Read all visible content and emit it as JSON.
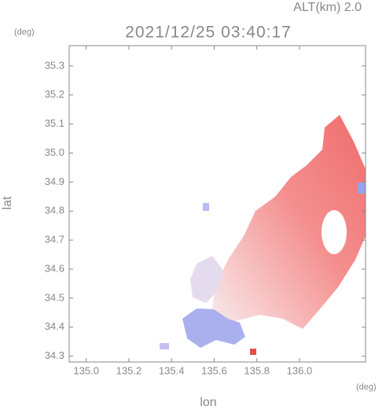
{
  "chart_data": {
    "type": "radar",
    "title": "2021/12/25 03:40:17",
    "altitude_label": "ALT(km) 2.0",
    "y_unit": "(deg)",
    "x_unit": "(deg)",
    "xlabel": "lon",
    "ylabel": "lat",
    "xlim": [
      134.92,
      136.31
    ],
    "ylim": [
      34.28,
      35.37
    ],
    "xticks": [
      {
        "value": 135.0,
        "label": "135.0"
      },
      135.2,
      135.4,
      135.6,
      135.8,
      {
        "value": 136.0,
        "label": "136.0"
      }
    ],
    "yticks": [
      35.3,
      35.2,
      35.1,
      {
        "value": 35.0,
        "label": "35.0"
      },
      34.9,
      34.8,
      34.7,
      34.6,
      34.5,
      34.4,
      34.3
    ]
  }
}
